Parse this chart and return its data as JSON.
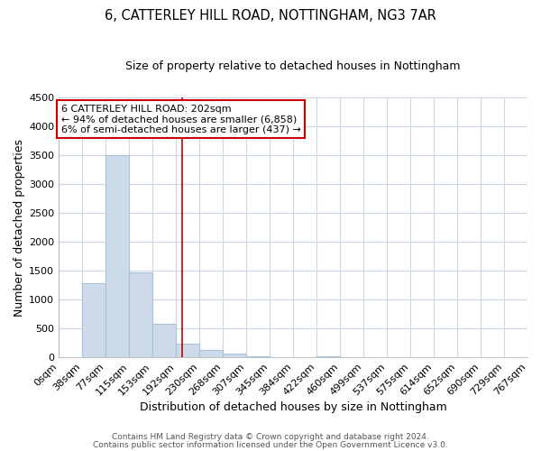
{
  "title": "6, CATTERLEY HILL ROAD, NOTTINGHAM, NG3 7AR",
  "subtitle": "Size of property relative to detached houses in Nottingham",
  "xlabel": "Distribution of detached houses by size in Nottingham",
  "ylabel": "Number of detached properties",
  "bar_color": "#ccdaea",
  "bar_edge_color": "#a8c0d8",
  "bin_edges": [
    0,
    38,
    77,
    115,
    153,
    192,
    230,
    268,
    307,
    345,
    384,
    422,
    460,
    499,
    537,
    575,
    614,
    652,
    690,
    729,
    767
  ],
  "bar_heights": [
    0,
    1280,
    3500,
    1480,
    580,
    240,
    130,
    70,
    30,
    0,
    0,
    30,
    0,
    0,
    0,
    0,
    0,
    0,
    0,
    0
  ],
  "red_line_x": 202,
  "ylim": [
    0,
    4500
  ],
  "yticks": [
    0,
    500,
    1000,
    1500,
    2000,
    2500,
    3000,
    3500,
    4000,
    4500
  ],
  "annotation_title": "6 CATTERLEY HILL ROAD: 202sqm",
  "annotation_line1": "← 94% of detached houses are smaller (6,858)",
  "annotation_line2": "6% of semi-detached houses are larger (437) →",
  "annotation_box_color": "#ffffff",
  "annotation_box_edge": "#cc0000",
  "footer_line1": "Contains HM Land Registry data © Crown copyright and database right 2024.",
  "footer_line2": "Contains public sector information licensed under the Open Government Licence v3.0.",
  "background_color": "#ffffff",
  "grid_color": "#ccd8ea",
  "title_fontsize": 10.5,
  "subtitle_fontsize": 9,
  "axis_label_fontsize": 9,
  "tick_fontsize": 8,
  "annotation_fontsize": 8,
  "footer_fontsize": 6.5
}
